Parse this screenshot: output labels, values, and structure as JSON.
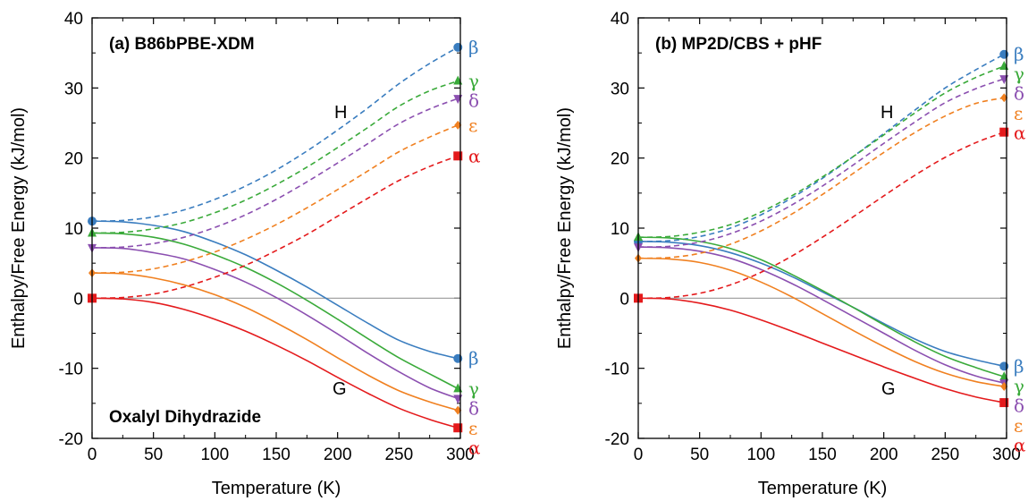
{
  "colors": {
    "alpha": "#e41a1c",
    "beta": "#3a7dbf",
    "gamma": "#3aaa3a",
    "delta": "#8b4fb0",
    "epsilon": "#f08020",
    "zero_line": "#999999"
  },
  "chart_data": [
    {
      "type": "line",
      "title": "(a) B86bPBE-XDM",
      "annotation": "Oxalyl Dihydrazide",
      "xlabel": "Temperature (K)",
      "ylabel": "Enthalpy/Free Energy (kJ/mol)",
      "xlim": [
        0,
        300
      ],
      "ylim": [
        -20,
        40
      ],
      "xticks": [
        0,
        50,
        100,
        150,
        200,
        250,
        300
      ],
      "yticks": [
        -20,
        -10,
        0,
        10,
        20,
        30,
        40
      ],
      "h_label": "H",
      "g_label": "G",
      "x": [
        0,
        25,
        50,
        75,
        100,
        125,
        150,
        175,
        200,
        225,
        250,
        275,
        298
      ],
      "series": [
        {
          "name": "β",
          "key": "beta",
          "H": [
            11.0,
            11.1,
            11.6,
            12.6,
            14.1,
            16.0,
            18.3,
            21.0,
            24.0,
            27.2,
            30.6,
            33.5,
            35.8
          ],
          "G": [
            11.0,
            10.9,
            10.4,
            9.5,
            8.0,
            6.2,
            4.0,
            1.6,
            -1.0,
            -3.6,
            -6.0,
            -7.6,
            -8.6
          ]
        },
        {
          "name": "γ",
          "key": "gamma",
          "H": [
            9.3,
            9.4,
            9.9,
            10.8,
            12.2,
            14.0,
            16.2,
            18.7,
            21.5,
            24.4,
            27.4,
            29.6,
            31.0
          ],
          "G": [
            9.3,
            9.2,
            8.7,
            7.7,
            6.2,
            4.4,
            2.2,
            -0.3,
            -3.0,
            -5.8,
            -8.5,
            -10.8,
            -12.9
          ]
        },
        {
          "name": "δ",
          "key": "delta",
          "H": [
            7.2,
            7.3,
            7.8,
            8.7,
            10.1,
            11.9,
            14.1,
            16.6,
            19.3,
            22.1,
            24.9,
            27.0,
            28.5
          ],
          "G": [
            7.2,
            7.1,
            6.5,
            5.6,
            4.1,
            2.3,
            0.1,
            -2.4,
            -5.1,
            -7.9,
            -10.5,
            -12.8,
            -14.3
          ]
        },
        {
          "name": "ε",
          "key": "epsilon",
          "H": [
            3.6,
            3.7,
            4.2,
            5.2,
            6.6,
            8.4,
            10.5,
            12.9,
            15.5,
            18.2,
            20.9,
            23.0,
            24.7
          ],
          "G": [
            3.6,
            3.5,
            2.9,
            1.9,
            0.5,
            -1.3,
            -3.5,
            -5.9,
            -8.5,
            -11.0,
            -13.2,
            -14.8,
            -16.0
          ]
        },
        {
          "name": "α",
          "key": "alpha",
          "H": [
            0.0,
            0.1,
            0.6,
            1.6,
            3.0,
            4.7,
            6.8,
            9.1,
            11.7,
            14.3,
            16.8,
            18.8,
            20.3
          ],
          "G": [
            0.0,
            -0.1,
            -0.6,
            -1.6,
            -3.0,
            -4.7,
            -6.7,
            -8.9,
            -11.3,
            -13.6,
            -15.7,
            -17.3,
            -18.5
          ]
        }
      ]
    },
    {
      "type": "line",
      "title": "(b) MP2D/CBS + pHF",
      "annotation": "",
      "xlabel": "Temperature (K)",
      "ylabel": "Enthalpy/Free Energy (kJ/mol)",
      "xlim": [
        0,
        300
      ],
      "ylim": [
        -20,
        40
      ],
      "xticks": [
        0,
        50,
        100,
        150,
        200,
        250,
        300
      ],
      "yticks": [
        -20,
        -10,
        0,
        10,
        20,
        30,
        40
      ],
      "h_label": "H",
      "g_label": "G",
      "x": [
        0,
        25,
        50,
        75,
        100,
        125,
        150,
        175,
        200,
        225,
        250,
        275,
        298
      ],
      "series": [
        {
          "name": "β",
          "key": "beta",
          "H": [
            8.1,
            8.2,
            8.8,
            10.0,
            11.9,
            14.3,
            17.1,
            20.2,
            23.5,
            26.8,
            30.0,
            32.6,
            34.8
          ],
          "G": [
            8.1,
            8.0,
            7.5,
            6.5,
            5.0,
            3.1,
            0.9,
            -1.3,
            -3.6,
            -5.8,
            -7.6,
            -8.8,
            -9.7
          ]
        },
        {
          "name": "γ",
          "key": "gamma",
          "H": [
            8.7,
            8.8,
            9.4,
            10.5,
            12.3,
            14.6,
            17.3,
            20.2,
            23.3,
            26.4,
            29.3,
            31.5,
            33.1
          ],
          "G": [
            8.7,
            8.6,
            8.1,
            7.1,
            5.5,
            3.4,
            1.1,
            -1.3,
            -3.8,
            -6.2,
            -8.3,
            -9.9,
            -11.2
          ]
        },
        {
          "name": "δ",
          "key": "delta",
          "H": [
            7.3,
            7.4,
            8.0,
            9.2,
            11.0,
            13.3,
            16.0,
            19.0,
            22.1,
            25.1,
            27.9,
            29.9,
            31.3
          ],
          "G": [
            7.3,
            7.2,
            6.7,
            5.7,
            4.1,
            2.1,
            -0.2,
            -2.6,
            -5.0,
            -7.4,
            -9.5,
            -11.1,
            -12.1
          ]
        },
        {
          "name": "ε",
          "key": "epsilon",
          "H": [
            5.7,
            5.8,
            6.4,
            7.7,
            9.6,
            12.0,
            14.8,
            17.8,
            20.8,
            23.6,
            26.0,
            27.8,
            28.6
          ],
          "G": [
            5.7,
            5.6,
            5.1,
            4.0,
            2.3,
            0.2,
            -2.2,
            -4.6,
            -6.9,
            -9.0,
            -10.7,
            -11.9,
            -12.6
          ]
        },
        {
          "name": "α",
          "key": "alpha",
          "H": [
            0.0,
            0.1,
            0.7,
            1.9,
            3.7,
            6.0,
            8.7,
            11.6,
            14.6,
            17.5,
            20.1,
            22.2,
            23.7
          ],
          "G": [
            0.0,
            -0.1,
            -0.7,
            -1.7,
            -3.1,
            -4.7,
            -6.4,
            -8.1,
            -9.8,
            -11.4,
            -12.9,
            -14.1,
            -14.9
          ]
        }
      ]
    }
  ]
}
